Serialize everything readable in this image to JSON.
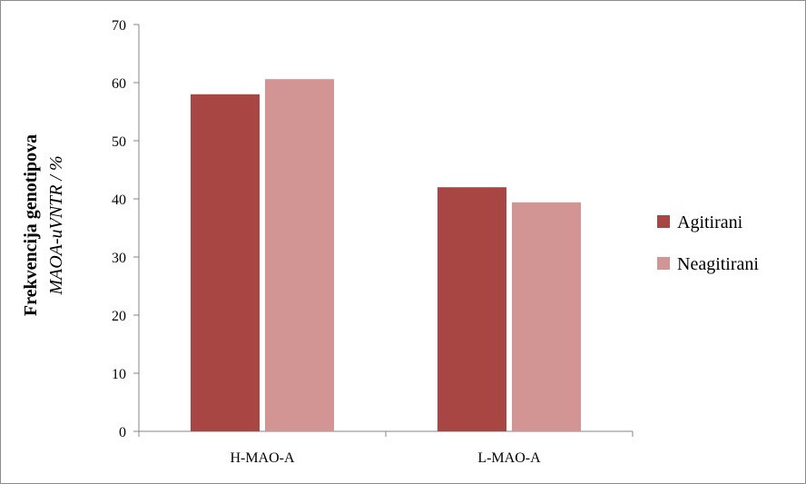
{
  "chart_data": {
    "type": "bar",
    "categories": [
      "H-MAO-A",
      "L-MAO-A"
    ],
    "series": [
      {
        "name": "Agitirani",
        "values": [
          58.0,
          42.0
        ],
        "color": "#A84643"
      },
      {
        "name": "Neagitirani",
        "values": [
          60.6,
          39.4
        ],
        "color": "#D39494"
      }
    ],
    "ylabel_line1": "Frekvencija genotipova",
    "ylabel_line2": "MAOA-uVNTR / %",
    "ylim": [
      0,
      70
    ],
    "yticks": [
      0,
      10,
      20,
      30,
      40,
      50,
      60,
      70
    ],
    "grid": false,
    "legend_position": "right"
  }
}
